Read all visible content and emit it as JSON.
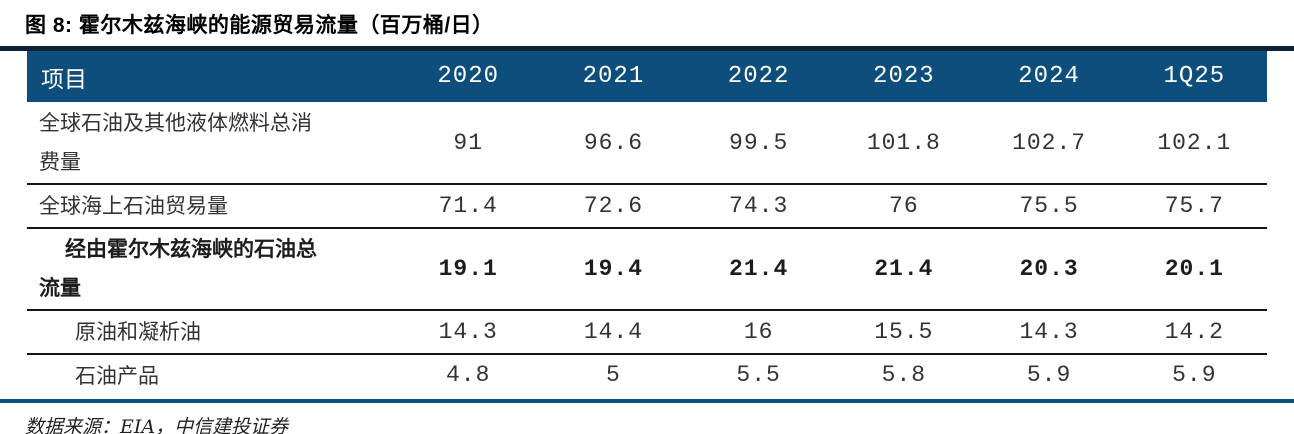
{
  "chart_data": {
    "type": "table",
    "title": "图 8: 霍尔木兹海峡的能源贸易流量（百万桶/日）",
    "source_note": "数据来源：EIA，中信建投证券",
    "columns": [
      "项目",
      "2020",
      "2021",
      "2022",
      "2023",
      "2024",
      "1Q25"
    ],
    "rows": [
      {
        "label": "全球石油及其他液体燃料总消费量",
        "indent": 0,
        "bold": false,
        "values": [
          "91",
          "96.6",
          "99.5",
          "101.8",
          "102.7",
          "102.1"
        ]
      },
      {
        "label": "全球海上石油贸易量",
        "indent": 0,
        "bold": false,
        "values": [
          "71.4",
          "72.6",
          "74.3",
          "76",
          "75.5",
          "75.7"
        ]
      },
      {
        "label": "经由霍尔木兹海峡的石油总流量",
        "indent": 1,
        "bold": true,
        "values": [
          "19.1",
          "19.4",
          "21.4",
          "21.4",
          "20.3",
          "20.1"
        ]
      },
      {
        "label": "原油和凝析油",
        "indent": 2,
        "bold": false,
        "values": [
          "14.3",
          "14.4",
          "16",
          "15.5",
          "14.3",
          "14.2"
        ]
      },
      {
        "label": "石油产品",
        "indent": 2,
        "bold": false,
        "values": [
          "4.8",
          "5",
          "5.5",
          "5.8",
          "5.9",
          "5.9"
        ]
      }
    ]
  },
  "colors": {
    "header_bg": "#0e4e7c",
    "header_text": "#ffffff",
    "title_rule": "#0d2137",
    "bottom_rule": "#0e4e7c",
    "row_divider": "#141414",
    "body_text": "#333333"
  }
}
